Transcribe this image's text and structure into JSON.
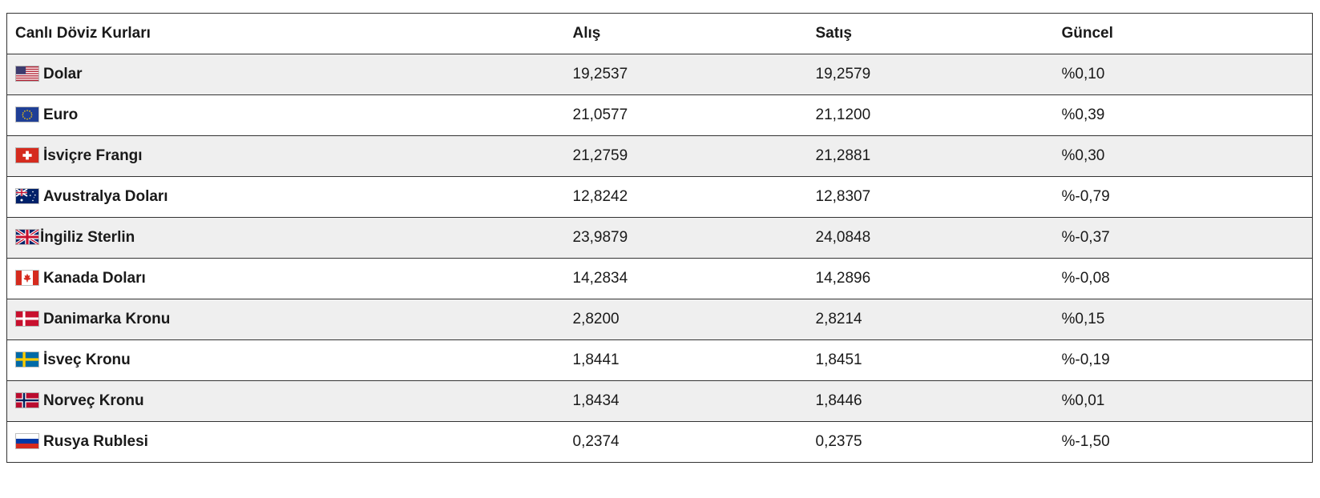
{
  "table": {
    "headers": {
      "name": "Canlı Döviz Kurları",
      "buy": "Alış",
      "sell": "Satış",
      "change": "Güncel"
    },
    "rows": [
      {
        "flag": "us-flag-icon",
        "name": "Dolar",
        "buy": "19,2537",
        "sell": "19,2579",
        "change": "%0,10"
      },
      {
        "flag": "eu-flag-icon",
        "name": "Euro",
        "buy": "21,0577",
        "sell": "21,1200",
        "change": "%0,39"
      },
      {
        "flag": "ch-flag-icon",
        "name": "İsviçre Frangı",
        "buy": "21,2759",
        "sell": "21,2881",
        "change": "%0,30"
      },
      {
        "flag": "au-flag-icon",
        "name": "Avustralya Doları",
        "buy": "12,8242",
        "sell": "12,8307",
        "change": "%-0,79"
      },
      {
        "flag": "gb-flag-icon",
        "name": "İngiliz Sterlin",
        "buy": "23,9879",
        "sell": "24,0848",
        "change": "%-0,37"
      },
      {
        "flag": "ca-flag-icon",
        "name": "Kanada Doları",
        "buy": "14,2834",
        "sell": "14,2896",
        "change": "%-0,08"
      },
      {
        "flag": "dk-flag-icon",
        "name": "Danimarka Kronu",
        "buy": "2,8200",
        "sell": "2,8214",
        "change": "%0,15"
      },
      {
        "flag": "se-flag-icon",
        "name": "İsveç Kronu",
        "buy": "1,8441",
        "sell": "1,8451",
        "change": "%-0,19"
      },
      {
        "flag": "no-flag-icon",
        "name": "Norveç Kronu",
        "buy": "1,8434",
        "sell": "1,8446",
        "change": "%0,01"
      },
      {
        "flag": "ru-flag-icon",
        "name": "Rusya Rublesi",
        "buy": "0,2374",
        "sell": "0,2375",
        "change": "%-1,50"
      }
    ]
  }
}
